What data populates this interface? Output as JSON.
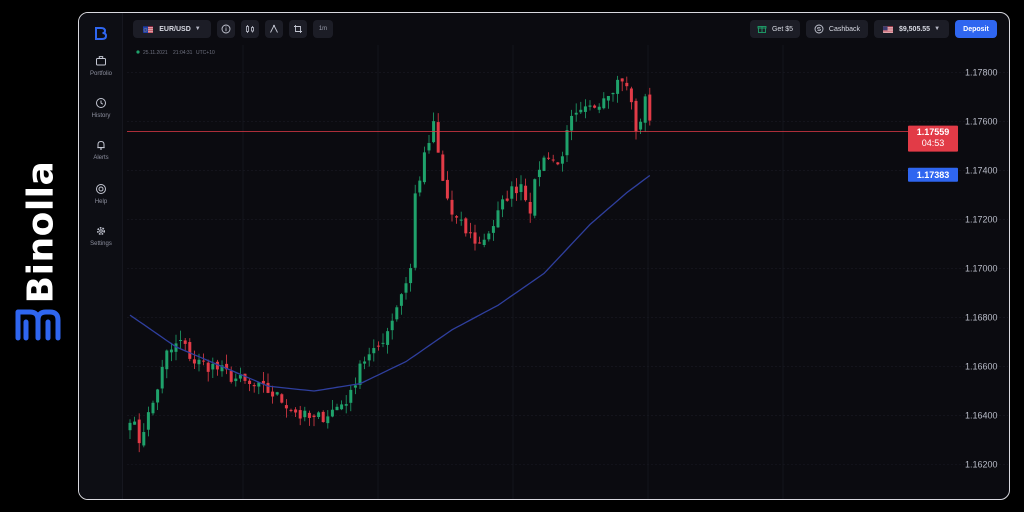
{
  "brand": {
    "name": "Binolla",
    "accent": "#2f66f0"
  },
  "sidebar": {
    "items": [
      {
        "label": "Portfolio",
        "icon": "briefcase-icon"
      },
      {
        "label": "History",
        "icon": "clock-icon"
      },
      {
        "label": "Alerts",
        "icon": "bell-icon"
      },
      {
        "label": "Help",
        "icon": "lifebuoy-icon"
      },
      {
        "label": "Settings",
        "icon": "gear-icon"
      }
    ]
  },
  "topbar": {
    "pair": "EUR/USD",
    "timeframe": "1m",
    "bonus_label": "Get $5",
    "cashback_label": "Cashback",
    "balance": "$9,505.55",
    "deposit_label": "Deposit"
  },
  "chart_info": {
    "date": "25.11.2021",
    "time": "21:04:31",
    "timezone": "UTC+10"
  },
  "chart_data": {
    "type": "candlestick",
    "instrument": "EUR/USD",
    "interval": "1m",
    "ylim": [
      1.161,
      1.1788
    ],
    "y_ticks": [
      1.178,
      1.176,
      1.174,
      1.172,
      1.17,
      1.168,
      1.166,
      1.164,
      1.162
    ],
    "y_tick_labels": [
      "1.17800",
      "1.17600",
      "1.17400",
      "1.17200",
      "1.17000",
      "1.16800",
      "1.16600",
      "1.16400",
      "1.16200"
    ],
    "grid": true,
    "current_price": {
      "label": "1.17559",
      "value": 1.17559,
      "countdown": "04:53",
      "color": "#e23b47"
    },
    "indicator_price": {
      "label": "1.17383",
      "value": 1.17383,
      "color": "#2f66f0"
    },
    "colors": {
      "up": "#1fa26b",
      "down": "#e23b47",
      "indicator": "#2f3f9e"
    },
    "anchors": [
      [
        0,
        1.164
      ],
      [
        2,
        1.163
      ],
      [
        5,
        1.1645
      ],
      [
        8,
        1.1665
      ],
      [
        11,
        1.167
      ],
      [
        14,
        1.1662
      ],
      [
        18,
        1.166
      ],
      [
        22,
        1.1656
      ],
      [
        26,
        1.1652
      ],
      [
        30,
        1.165
      ],
      [
        34,
        1.1645
      ],
      [
        37,
        1.164
      ],
      [
        40,
        1.1638
      ],
      [
        44,
        1.1642
      ],
      [
        48,
        1.1648
      ],
      [
        50,
        1.1662
      ],
      [
        53,
        1.1665
      ],
      [
        56,
        1.1675
      ],
      [
        59,
        1.169
      ],
      [
        61,
        1.17
      ],
      [
        62,
        1.173
      ],
      [
        64,
        1.1745
      ],
      [
        66,
        1.1758
      ],
      [
        68,
        1.1735
      ],
      [
        70,
        1.1722
      ],
      [
        73,
        1.1715
      ],
      [
        76,
        1.171
      ],
      [
        79,
        1.1718
      ],
      [
        82,
        1.173
      ],
      [
        85,
        1.1735
      ],
      [
        87,
        1.1725
      ],
      [
        89,
        1.1742
      ],
      [
        91,
        1.1747
      ],
      [
        93,
        1.1742
      ],
      [
        96,
        1.176
      ],
      [
        100,
        1.1765
      ],
      [
        104,
        1.1773
      ],
      [
        107,
        1.1778
      ],
      [
        109,
        1.1768
      ],
      [
        110,
        1.1755
      ],
      [
        112,
        1.1768
      ],
      [
        113,
        1.1762
      ]
    ],
    "sma": [
      [
        0,
        1.1681
      ],
      [
        10,
        1.1668
      ],
      [
        20,
        1.166
      ],
      [
        30,
        1.1652
      ],
      [
        40,
        1.165
      ],
      [
        50,
        1.1653
      ],
      [
        60,
        1.1662
      ],
      [
        70,
        1.1675
      ],
      [
        80,
        1.1685
      ],
      [
        90,
        1.1698
      ],
      [
        100,
        1.1718
      ],
      [
        108,
        1.1731
      ],
      [
        113,
        1.1738
      ]
    ]
  }
}
